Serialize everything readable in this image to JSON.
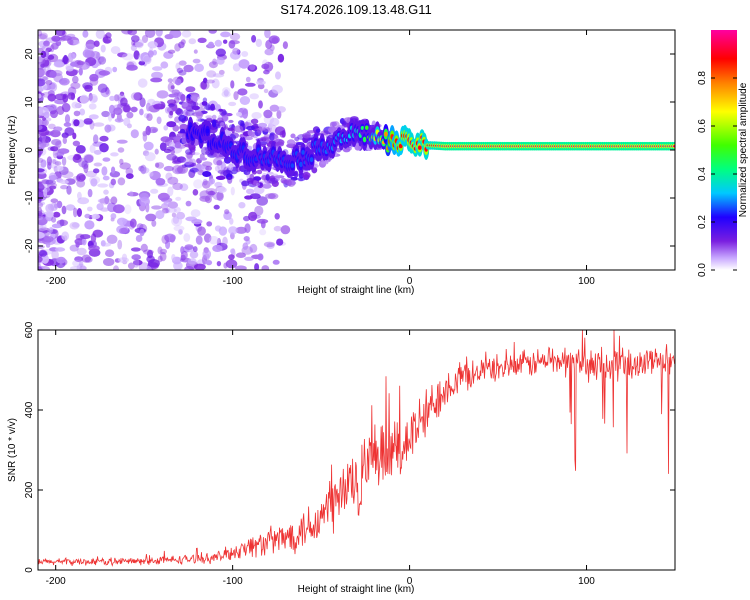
{
  "figure_title": "S174.2026.109.13.48.G11",
  "chart_data": [
    {
      "type": "heatmap",
      "title": "S174.2026.109.13.48.G11",
      "xlabel": "Height of straight line (km)",
      "ylabel": "Frequency (Hz)",
      "xlim": [
        -210,
        150
      ],
      "ylim": [
        -25,
        25
      ],
      "x_ticks": [
        -200,
        -100,
        0,
        100
      ],
      "x_tick_labels": [
        "-200",
        "-100",
        "0",
        "100"
      ],
      "y_ticks": [
        20,
        10,
        0,
        -10,
        -20
      ],
      "y_tick_labels": [
        "20",
        "10",
        "0",
        "-10",
        "-20"
      ],
      "colorbar": {
        "label": "Normalized spectral amplitude",
        "range": [
          0,
          1
        ],
        "ticks": [
          0,
          0.2,
          0.4,
          0.6,
          0.8
        ],
        "tick_labels": [
          "0.0",
          "0.2",
          "0.4",
          "0.6",
          "0.8"
        ],
        "colormap": [
          "#ffffff",
          "#c8a8ff",
          "#7a1fe0",
          "#2000ff",
          "#00c8ff",
          "#00ff80",
          "#40ff00",
          "#ffff00",
          "#ff8000",
          "#ff0000",
          "#ff00a0"
        ]
      },
      "ridge": [
        {
          "x": -120,
          "freq": 3.5,
          "amp": 0.22
        },
        {
          "x": -110,
          "freq": 2.0,
          "amp": 0.22
        },
        {
          "x": -100,
          "freq": 0.5,
          "amp": 0.24
        },
        {
          "x": -90,
          "freq": -1.0,
          "amp": 0.24
        },
        {
          "x": -80,
          "freq": -1.5,
          "amp": 0.25
        },
        {
          "x": -70,
          "freq": -2.0,
          "amp": 0.25
        },
        {
          "x": -60,
          "freq": -1.5,
          "amp": 0.26
        },
        {
          "x": -50,
          "freq": 0.5,
          "amp": 0.26
        },
        {
          "x": -40,
          "freq": 2.5,
          "amp": 0.3
        },
        {
          "x": -30,
          "freq": 3.5,
          "amp": 0.35
        },
        {
          "x": -20,
          "freq": 3.0,
          "amp": 0.6
        },
        {
          "x": -10,
          "freq": 1.5,
          "amp": 0.85
        },
        {
          "x": 0,
          "freq": 1.5,
          "amp": 0.9
        },
        {
          "x": 10,
          "freq": 1.0,
          "amp": 0.9
        },
        {
          "x": 20,
          "freq": 0.8,
          "amp": 0.95
        },
        {
          "x": 50,
          "freq": 0.8,
          "amp": 0.95
        },
        {
          "x": 100,
          "freq": 0.8,
          "amp": 0.95
        },
        {
          "x": 150,
          "freq": 0.8,
          "amp": 0.95
        }
      ]
    },
    {
      "type": "line",
      "title": "",
      "xlabel": "Height of straight line (km)",
      "ylabel": "SNR (10 * v/v)",
      "xlim": [
        -210,
        150
      ],
      "ylim": [
        0,
        600
      ],
      "x_ticks": [
        -200,
        -100,
        0,
        100
      ],
      "x_tick_labels": [
        "-200",
        "-100",
        "0",
        "100"
      ],
      "y_ticks": [
        0,
        200,
        400,
        600
      ],
      "y_tick_labels": [
        "0",
        "200",
        "400",
        "600"
      ],
      "color": "#ee3333",
      "envelope": [
        {
          "x": -210,
          "mean": 20,
          "spread": 10
        },
        {
          "x": -150,
          "mean": 22,
          "spread": 12
        },
        {
          "x": -110,
          "mean": 30,
          "spread": 15
        },
        {
          "x": -90,
          "mean": 60,
          "spread": 35
        },
        {
          "x": -70,
          "mean": 80,
          "spread": 50
        },
        {
          "x": -50,
          "mean": 130,
          "spread": 80
        },
        {
          "x": -40,
          "mean": 180,
          "spread": 100
        },
        {
          "x": -30,
          "mean": 230,
          "spread": 120
        },
        {
          "x": -20,
          "mean": 260,
          "spread": 110
        },
        {
          "x": -10,
          "mean": 290,
          "spread": 100
        },
        {
          "x": 0,
          "mean": 330,
          "spread": 90
        },
        {
          "x": 10,
          "mean": 390,
          "spread": 80
        },
        {
          "x": 20,
          "mean": 460,
          "spread": 60
        },
        {
          "x": 40,
          "mean": 500,
          "spread": 40
        },
        {
          "x": 60,
          "mean": 510,
          "spread": 40
        },
        {
          "x": 80,
          "mean": 525,
          "spread": 45
        },
        {
          "x": 100,
          "mean": 515,
          "spread": 50
        },
        {
          "x": 120,
          "mean": 515,
          "spread": 50
        },
        {
          "x": 150,
          "mean": 520,
          "spread": 45
        }
      ],
      "dropout_range": {
        "x": [
          90,
          150
        ],
        "min": 240
      }
    }
  ]
}
